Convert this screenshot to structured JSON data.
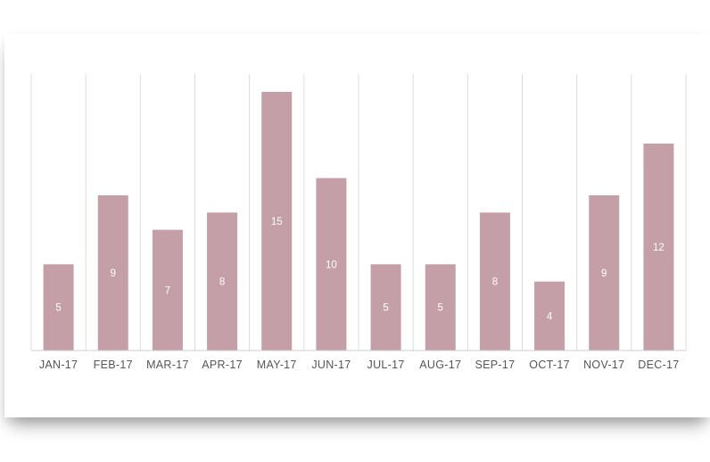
{
  "chart_data": {
    "type": "bar",
    "categories": [
      "JAN-17",
      "FEB-17",
      "MAR-17",
      "APR-17",
      "MAY-17",
      "JUN-17",
      "JUL-17",
      "AUG-17",
      "SEP-17",
      "OCT-17",
      "NOV-17",
      "DEC-17"
    ],
    "values": [
      5,
      9,
      7,
      8,
      15,
      10,
      5,
      5,
      8,
      4,
      9,
      12
    ],
    "data_labels": true,
    "ylim": [
      0,
      16
    ],
    "grid": "vertical",
    "legend": "none",
    "colors": {
      "bar": "#c49fa7",
      "grid": "#dcdcdc",
      "axis": "#cfcfcf",
      "tick_text": "#555555",
      "data_label_text": "#ffffff"
    }
  }
}
